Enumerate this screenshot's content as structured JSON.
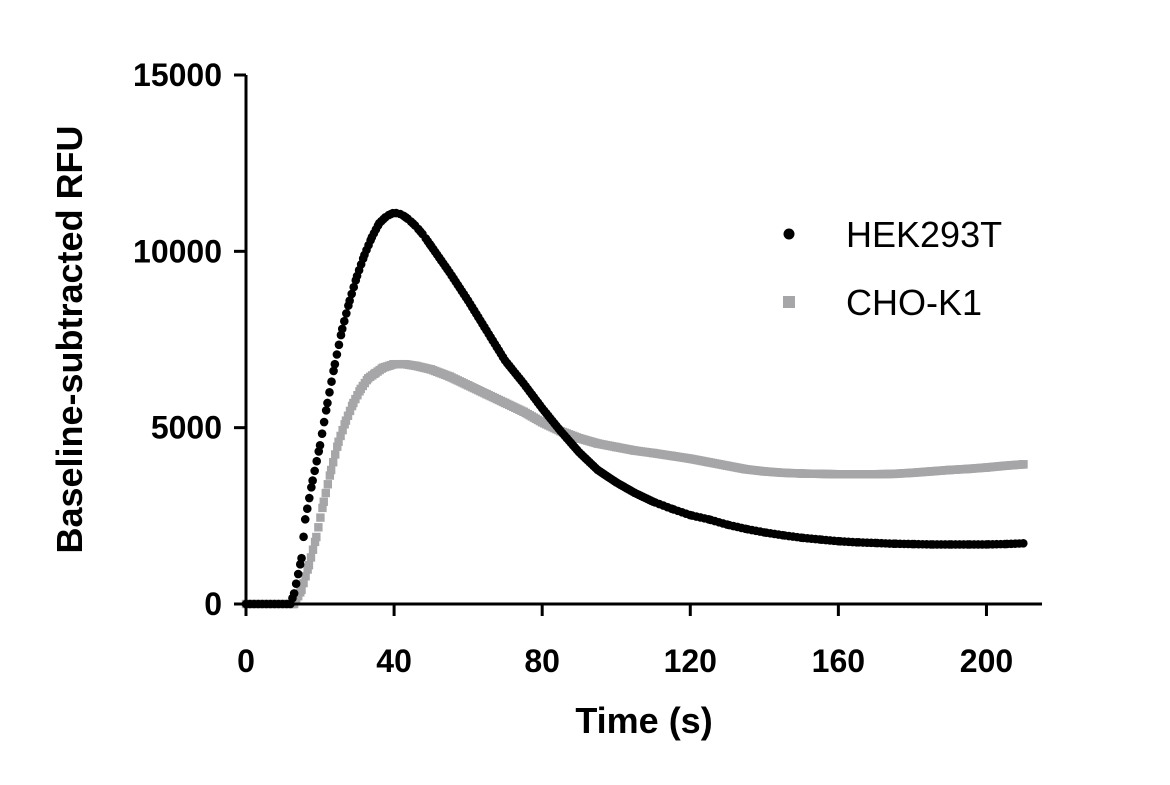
{
  "chart_data": {
    "type": "scatter",
    "xlabel": "Time (s)",
    "ylabel": "Baseline-subtracted RFU",
    "xlim": [
      0,
      215
    ],
    "ylim": [
      0,
      15000
    ],
    "xticks": [
      0,
      40,
      80,
      120,
      160,
      200
    ],
    "yticks": [
      0,
      5000,
      10000,
      15000
    ],
    "xtick_labels": [
      "0",
      "40",
      "80",
      "120",
      "160",
      "200"
    ],
    "ytick_labels": [
      "0",
      "5000",
      "10000",
      "15000"
    ],
    "grid": false,
    "legend_position": "right",
    "series": [
      {
        "name": "HEK293T",
        "marker": "circle",
        "color": "#000000",
        "x": [
          0,
          12,
          13,
          15,
          16,
          18,
          20,
          22,
          24,
          26,
          28,
          30,
          32,
          34,
          36,
          38,
          40,
          42,
          44,
          46,
          48,
          50,
          55,
          60,
          65,
          70,
          75,
          80,
          85,
          90,
          95,
          100,
          105,
          110,
          115,
          120,
          125,
          130,
          135,
          140,
          145,
          150,
          155,
          160,
          165,
          170,
          175,
          180,
          185,
          190,
          195,
          200,
          205,
          210
        ],
        "y": [
          0,
          0,
          300,
          1300,
          2400,
          3500,
          4500,
          5700,
          6800,
          7800,
          8600,
          9300,
          9900,
          10400,
          10800,
          11000,
          11100,
          11050,
          10900,
          10700,
          10450,
          10150,
          9400,
          8600,
          7750,
          6900,
          6250,
          5550,
          4900,
          4300,
          3800,
          3450,
          3150,
          2900,
          2700,
          2520,
          2400,
          2250,
          2130,
          2030,
          1950,
          1880,
          1830,
          1780,
          1750,
          1730,
          1710,
          1700,
          1690,
          1690,
          1690,
          1690,
          1700,
          1720
        ]
      },
      {
        "name": "CHO-K1",
        "marker": "square",
        "color": "#a6a6a8",
        "x": [
          0,
          13,
          15,
          17,
          19,
          21,
          23,
          25,
          27,
          29,
          31,
          33,
          35,
          37,
          40,
          43,
          46,
          50,
          55,
          60,
          65,
          70,
          75,
          80,
          85,
          90,
          95,
          100,
          105,
          110,
          115,
          120,
          125,
          130,
          135,
          140,
          145,
          150,
          155,
          160,
          165,
          170,
          175,
          180,
          185,
          190,
          195,
          200,
          205,
          210
        ],
        "y": [
          0,
          0,
          400,
          1100,
          1900,
          2900,
          3800,
          4600,
          5200,
          5700,
          6100,
          6400,
          6550,
          6700,
          6800,
          6800,
          6750,
          6650,
          6450,
          6200,
          5950,
          5700,
          5450,
          5150,
          4900,
          4700,
          4550,
          4450,
          4350,
          4280,
          4200,
          4120,
          4020,
          3920,
          3820,
          3760,
          3720,
          3700,
          3690,
          3680,
          3680,
          3680,
          3690,
          3720,
          3760,
          3800,
          3830,
          3870,
          3920,
          3960
        ]
      }
    ]
  }
}
